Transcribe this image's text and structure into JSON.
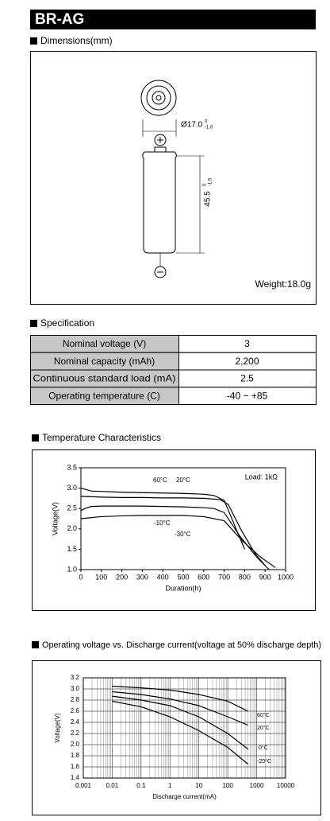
{
  "header": {
    "title": "BR-AG"
  },
  "dimensions": {
    "heading": "Dimensions(mm)",
    "diameter": "Ø17.0",
    "diameter_tol": [
      "0",
      "-1.0"
    ],
    "height": "45.5",
    "height_tol": [
      "0",
      "-1.5"
    ],
    "weight": "Weight:18.0g"
  },
  "specification": {
    "heading": "Specification",
    "rows": [
      [
        "Nominal voltage (V)",
        "3"
      ],
      [
        "Nominal capacity (mAh)",
        "2,200"
      ],
      [
        "Continuous standard load (mA)",
        "2.5"
      ],
      [
        "Operating temperature (C)",
        "-40 ~ +85"
      ]
    ]
  },
  "chart_data": [
    {
      "type": "line",
      "title": "Temperature Characteristics",
      "x_label": "Duration(h)",
      "y_label": "Voltage(V)",
      "annotation": "Load: 1kΩ",
      "xlim": [
        0,
        1000
      ],
      "xticks": [
        0,
        100,
        200,
        300,
        400,
        500,
        600,
        700,
        800,
        900,
        1000
      ],
      "ylim": [
        1,
        3.5
      ],
      "yticks": [
        {
          "value": 1,
          "label": "1.0"
        },
        1.5,
        {
          "value": 2,
          "label": "2.0"
        },
        2.5,
        {
          "value": 3,
          "label": "3.0"
        },
        3.5
      ],
      "grid": false,
      "log_x": false,
      "series": [
        {
          "name": "60°C",
          "color": "#000000",
          "x": [
            0,
            50,
            100,
            200,
            300,
            400,
            500,
            600,
            650,
            700,
            750,
            800
          ],
          "values": [
            3.0,
            2.93,
            2.92,
            2.9,
            2.89,
            2.88,
            2.87,
            2.85,
            2.82,
            2.7,
            2.1,
            1.5
          ]
        },
        {
          "name": "20°C",
          "color": "#000000",
          "x": [
            0,
            100,
            200,
            300,
            400,
            500,
            600,
            680,
            720,
            780,
            850,
            900
          ],
          "values": [
            2.8,
            2.78,
            2.77,
            2.77,
            2.76,
            2.76,
            2.75,
            2.72,
            2.6,
            2.0,
            1.4,
            1.1
          ]
        },
        {
          "name": "-10°C",
          "color": "#000000",
          "x": [
            0,
            20,
            50,
            100,
            200,
            300,
            400,
            500,
            600,
            650,
            700,
            780,
            860,
            920
          ],
          "values": [
            2.45,
            2.5,
            2.55,
            2.56,
            2.56,
            2.56,
            2.55,
            2.54,
            2.52,
            2.5,
            2.4,
            1.8,
            1.3,
            1.0
          ]
        },
        {
          "name": "-30°C",
          "color": "#000000",
          "x": [
            0,
            100,
            200,
            300,
            400,
            500,
            600,
            700,
            790,
            880,
            950
          ],
          "values": [
            2.25,
            2.3,
            2.32,
            2.33,
            2.33,
            2.33,
            2.3,
            2.2,
            1.7,
            1.3,
            1.05
          ]
        }
      ]
    },
    {
      "type": "line",
      "title": "Operating voltage vs. Discharge current(voltage at 50% discharge depth)",
      "x_label": "Discharge current(mA)",
      "y_label": "Voltage(V)",
      "xlim": [
        0.001,
        10000
      ],
      "xticks": [
        0.001,
        0.01,
        0.1,
        1,
        10,
        100,
        1000,
        10000
      ],
      "ylim": [
        1.4,
        3.2
      ],
      "yticks": [
        1.4,
        1.6,
        1.8,
        {
          "value": 2,
          "label": "2.0"
        },
        2.2,
        2.4,
        2.6,
        2.8,
        {
          "value": 3,
          "label": "3.0"
        },
        3.2
      ],
      "grid": true,
      "log_x": true,
      "series": [
        {
          "name": "60°C",
          "color": "#000000",
          "x": [
            0.01,
            0.1,
            1,
            10,
            100,
            500
          ],
          "values": [
            3.05,
            3.02,
            2.98,
            2.9,
            2.78,
            2.6
          ]
        },
        {
          "name": "20°C",
          "color": "#000000",
          "x": [
            0.01,
            0.1,
            1,
            10,
            100,
            500
          ],
          "values": [
            2.95,
            2.9,
            2.82,
            2.7,
            2.5,
            2.35
          ]
        },
        {
          "name": "0°C",
          "color": "#000000",
          "x": [
            0.01,
            0.1,
            1,
            10,
            100,
            500
          ],
          "values": [
            2.87,
            2.8,
            2.7,
            2.5,
            2.2,
            1.92
          ]
        },
        {
          "name": "-20°C",
          "color": "#000000",
          "x": [
            0.01,
            0.1,
            1,
            10,
            100,
            500
          ],
          "values": [
            2.78,
            2.68,
            2.5,
            2.25,
            1.95,
            1.65
          ]
        }
      ]
    }
  ]
}
